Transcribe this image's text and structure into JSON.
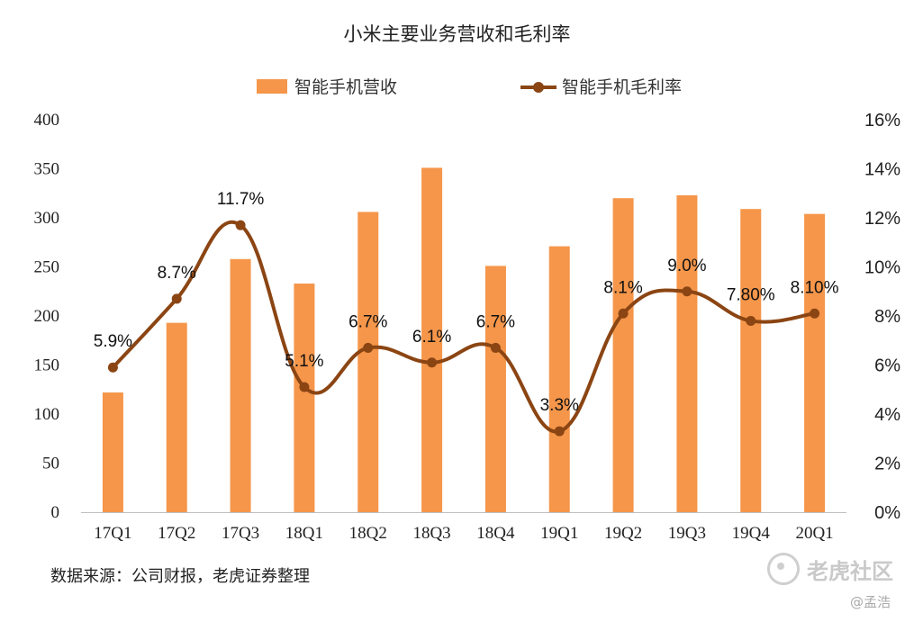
{
  "title": "小米主要业务营收和毛利率",
  "legend": {
    "bar_label": "智能手机营收",
    "line_label": "智能手机毛利率"
  },
  "source": "数据来源：公司财报，老虎证券整理",
  "watermark": "老虎社区",
  "author": "@孟浩",
  "colors": {
    "bar": "#F5964A",
    "line": "#8B4513"
  },
  "chart_data": {
    "type": "bar",
    "title": "小米主要业务营收和毛利率",
    "categories": [
      "17Q1",
      "17Q2",
      "17Q3",
      "18Q1",
      "18Q2",
      "18Q3",
      "18Q4",
      "19Q1",
      "19Q2",
      "19Q3",
      "19Q4",
      "20Q1"
    ],
    "series": [
      {
        "name": "智能手机营收",
        "type": "bar",
        "axis": "left",
        "values": [
          122,
          193,
          258,
          233,
          306,
          351,
          251,
          271,
          320,
          323,
          309,
          304
        ]
      },
      {
        "name": "智能手机毛利率",
        "type": "line",
        "axis": "right",
        "values": [
          5.9,
          8.7,
          11.7,
          5.1,
          6.7,
          6.1,
          6.7,
          3.3,
          8.1,
          9.0,
          7.8,
          8.1
        ],
        "labels": [
          "5.9%",
          "8.7%",
          "11.7%",
          "5.1%",
          "6.7%",
          "6.1%",
          "6.7%",
          "3.3%",
          "8.1%",
          "9.0%",
          "7.80%",
          "8.10%"
        ]
      }
    ],
    "y_left": {
      "ylim": [
        0,
        400
      ],
      "ticks": [
        "0",
        "50",
        "100",
        "150",
        "200",
        "250",
        "300",
        "350",
        "400"
      ]
    },
    "y_right": {
      "ylim": [
        0,
        16
      ],
      "ticks": [
        "0%",
        "2%",
        "4%",
        "6%",
        "8%",
        "10%",
        "12%",
        "14%",
        "16%"
      ]
    },
    "grid": false,
    "legend_position": "top"
  }
}
